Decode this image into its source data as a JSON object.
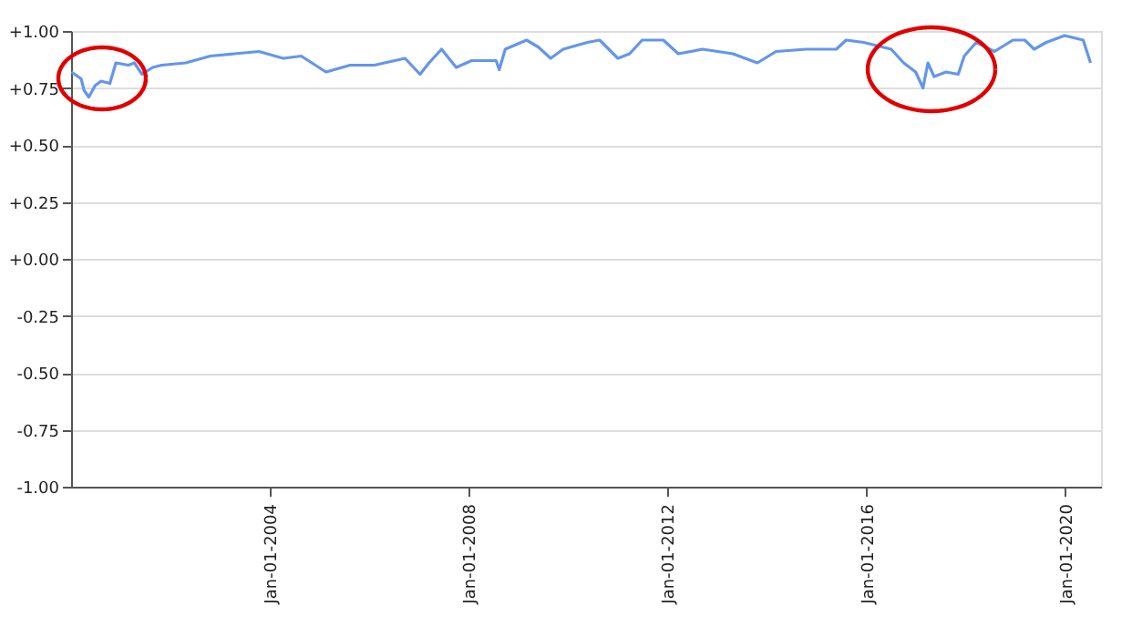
{
  "chart_data": {
    "type": "line",
    "x": [
      "2000-01-04",
      "2000-03-15",
      "2000-04-05",
      "2000-05-10",
      "2000-06-25",
      "2000-08-08",
      "2000-10-12",
      "2000-11-25",
      "2001-02-25",
      "2001-04-10",
      "2001-06-05",
      "2001-08-22",
      "2001-10-27",
      "2002-04-22",
      "2002-10-20",
      "2003-04-15",
      "2003-10-12",
      "2004-04-08",
      "2004-08-18",
      "2005-02-16",
      "2005-08-12",
      "2006-02-06",
      "2006-09-20",
      "2007-01-08",
      "2007-03-15",
      "2007-06-15",
      "2007-10-01",
      "2008-01-22",
      "2008-07-20",
      "2008-08-12",
      "2008-09-25",
      "2009-03-01",
      "2009-05-25",
      "2009-08-25",
      "2009-11-25",
      "2010-05-22",
      "2010-08-20",
      "2011-01-01",
      "2011-03-28",
      "2011-06-28",
      "2011-12-01",
      "2012-03-20",
      "2012-09-15",
      "2013-04-25",
      "2013-10-22",
      "2014-03-08",
      "2014-10-15",
      "2015-05-25",
      "2015-08-05",
      "2015-12-12",
      "2016-07-01",
      "2016-10-01",
      "2016-12-28",
      "2017-02-20",
      "2017-03-28",
      "2017-05-12",
      "2017-08-08",
      "2017-11-06",
      "2017-12-20",
      "2018-03-18",
      "2018-07-30",
      "2018-12-12",
      "2019-03-10",
      "2019-05-18",
      "2019-08-15",
      "2019-12-28",
      "2020-05-12",
      "2020-07-05"
    ],
    "series": [
      {
        "color": "#6495ed",
        "values": [
          0.82,
          0.79,
          0.74,
          0.71,
          0.76,
          0.78,
          0.77,
          0.86,
          0.85,
          0.86,
          0.81,
          0.84,
          0.85,
          0.86,
          0.89,
          0.9,
          0.91,
          0.88,
          0.89,
          0.82,
          0.85,
          0.85,
          0.88,
          0.81,
          0.86,
          0.92,
          0.84,
          0.87,
          0.87,
          0.83,
          0.92,
          0.96,
          0.93,
          0.88,
          0.92,
          0.95,
          0.96,
          0.88,
          0.9,
          0.96,
          0.96,
          0.9,
          0.92,
          0.9,
          0.86,
          0.91,
          0.92,
          0.92,
          0.96,
          0.95,
          0.92,
          0.86,
          0.82,
          0.75,
          0.86,
          0.8,
          0.82,
          0.81,
          0.89,
          0.95,
          0.91,
          0.96,
          0.96,
          0.92,
          0.95,
          0.98,
          0.96,
          0.86
        ]
      }
    ],
    "xlim": [
      "2000-01-01",
      "2020-09-20"
    ],
    "xticks": [
      {
        "value": "2004-01-01",
        "label": "Jan-01-2004"
      },
      {
        "value": "2008-01-01",
        "label": "Jan-01-2008"
      },
      {
        "value": "2012-01-01",
        "label": "Jan-01-2012"
      },
      {
        "value": "2016-01-01",
        "label": "Jan-01-2016"
      },
      {
        "value": "2020-01-01",
        "label": "Jan-01-2020"
      }
    ],
    "ylim": [
      -1,
      1
    ],
    "yticks": [
      {
        "value": 1,
        "label": "+1.00"
      },
      {
        "value": 0.75,
        "label": "+0.75"
      },
      {
        "value": 0.5,
        "label": "+0.50"
      },
      {
        "value": 0.25,
        "label": "+0.25"
      },
      {
        "value": 0,
        "label": "+0.00"
      },
      {
        "value": -0.25,
        "label": "-0.25"
      },
      {
        "value": -0.5,
        "label": "-0.50"
      },
      {
        "value": -0.75,
        "label": "-0.75"
      },
      {
        "value": -1,
        "label": "-1.00"
      }
    ],
    "grid": "y",
    "marker": "none",
    "line_style": "solid"
  }
}
